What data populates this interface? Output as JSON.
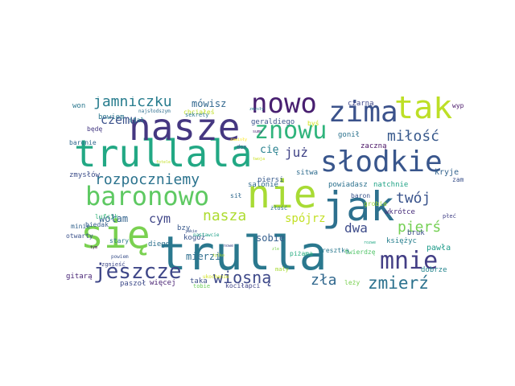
{
  "words": [
    {
      "text": "trulla",
      "color": "#2a788e"
    },
    {
      "text": "trullala",
      "color": "#22a884"
    },
    {
      "text": "nasze",
      "color": "#453781"
    },
    {
      "text": "nie",
      "color": "#a8db34"
    },
    {
      "text": "jak",
      "color": "#2d708e"
    },
    {
      "text": "się",
      "color": "#7ad151"
    },
    {
      "text": "słodkie",
      "color": "#39568c"
    },
    {
      "text": "nowo",
      "color": "#481f70"
    },
    {
      "text": "zima",
      "color": "#3b528b"
    },
    {
      "text": "tak",
      "color": "#bddf26"
    },
    {
      "text": "baronowo",
      "color": "#5ec962"
    },
    {
      "text": "znowu",
      "color": "#2fb47c"
    },
    {
      "text": "mnie",
      "color": "#433e85"
    },
    {
      "text": "jeszcze",
      "color": "#3f4788"
    },
    {
      "text": "wiosną",
      "color": "#3e4989"
    },
    {
      "text": "rozpoczniemy",
      "color": "#2c738e"
    },
    {
      "text": "jamniczku",
      "color": "#287d8e"
    },
    {
      "text": "zmierź",
      "color": "#2c728e"
    },
    {
      "text": "nasza",
      "color": "#addc30"
    },
    {
      "text": "pierś",
      "color": "#75d054"
    },
    {
      "text": "twój",
      "color": "#3a548c"
    },
    {
      "text": "miłość",
      "color": "#38598c"
    },
    {
      "text": "zła",
      "color": "#31688e"
    },
    {
      "text": "dwa",
      "color": "#3e4c8a"
    },
    {
      "text": "cym",
      "color": "#404688"
    },
    {
      "text": "już",
      "color": "#414487"
    },
    {
      "text": "czemu",
      "color": "#3b518b"
    },
    {
      "text": "spójrz",
      "color": "#c2df23"
    },
    {
      "text": "cię",
      "color": "#27808e"
    },
    {
      "text": "mówisz",
      "color": "#31678e"
    },
    {
      "text": "wołam",
      "color": "#33638d"
    },
    {
      "text": "sobie",
      "color": "#355f8d"
    },
    {
      "text": "mierzi",
      "color": "#2e6e8e"
    },
    {
      "text": "kryje",
      "color": "#33638d"
    },
    {
      "text": "pawła",
      "color": "#1e9b8a"
    },
    {
      "text": "czarna",
      "color": "#3f4889"
    },
    {
      "text": "gonił",
      "color": "#2c738e"
    },
    {
      "text": "zaczną",
      "color": "#471063"
    },
    {
      "text": "księżyc",
      "color": "#277f8e"
    },
    {
      "text": "bowiem",
      "color": "#2a768e"
    },
    {
      "text": "zmysłów",
      "color": "#3d4e8a"
    },
    {
      "text": "sitwa",
      "color": "#2f6c8e"
    },
    {
      "text": "salonie",
      "color": "#30698e"
    },
    {
      "text": "natchnie",
      "color": "#20a386"
    },
    {
      "text": "powiadasz",
      "color": "#2c718e"
    },
    {
      "text": "wkrótce",
      "color": "#472d7b"
    },
    {
      "text": "bruk",
      "color": "#3c4f8a"
    },
    {
      "text": "kogóż",
      "color": "#3a538b"
    },
    {
      "text": "diego",
      "color": "#2d718e"
    },
    {
      "text": "bzy",
      "color": "#38598c"
    },
    {
      "text": "gitarą",
      "color": "#482576"
    },
    {
      "text": "więcej",
      "color": "#482173"
    },
    {
      "text": "paszoł",
      "color": "#3e4a89"
    },
    {
      "text": "taka",
      "color": "#3c4f8a"
    },
    {
      "text": "kociłapci",
      "color": "#404588"
    },
    {
      "text": "leży",
      "color": "#7ad151"
    },
    {
      "text": "dobrze",
      "color": "#25858e"
    },
    {
      "text": "piersi",
      "color": "#375a8c"
    },
    {
      "text": "geraldiego",
      "color": "#3a548c"
    },
    {
      "text": "stał",
      "color": "#287c8e"
    },
    {
      "text": "won",
      "color": "#2a778e"
    },
    {
      "text": "będę",
      "color": "#443983"
    },
    {
      "text": "chciałeś",
      "color": "#c0df25"
    },
    {
      "text": "baronie",
      "color": "#31688e"
    },
    {
      "text": "minie",
      "color": "#33638d"
    },
    {
      "text": "stary",
      "color": "#2a778e"
    },
    {
      "text": "biedak",
      "color": "#365d8d"
    },
    {
      "text": "lufcik",
      "color": "#35b779"
    },
    {
      "text": "otwarty",
      "color": "#3b528b"
    },
    {
      "text": "zgnieść",
      "color": "#3e4989"
    },
    {
      "text": "sił",
      "color": "#30698e"
    },
    {
      "text": "żłość",
      "color": "#2c718e"
    },
    {
      "text": "resztką",
      "color": "#2a788e"
    },
    {
      "text": "twierdzę",
      "color": "#52c569"
    },
    {
      "text": "wypchnie",
      "color": "#481769"
    },
    {
      "text": "zamarzł",
      "color": "#3b518b"
    },
    {
      "text": "grobie",
      "color": "#a2da37"
    },
    {
      "text": "płeć",
      "color": "#424186"
    },
    {
      "text": "baron",
      "color": "#3a548c"
    },
    {
      "text": "piżama",
      "color": "#27ad81"
    },
    {
      "text": "mały",
      "color": "#a8db34"
    },
    {
      "text": "tobie",
      "color": "#6ccd5a"
    },
    {
      "text": "byś",
      "color": "#d2e21b"
    },
    {
      "text": "don",
      "color": "#3b528b"
    },
    {
      "text": "sekrety",
      "color": "#2a788e"
    },
    {
      "text": "zawisły",
      "color": "#fde725"
    },
    {
      "text": "powiem",
      "color": "#3b528b"
    },
    {
      "text": "nastawcie",
      "color": "#1fa088"
    },
    {
      "text": "ukochanie",
      "color": "#d0e11c"
    },
    {
      "text": "najsłodszym",
      "color": "#2e6e8e"
    },
    {
      "text": "twoja",
      "color": "#c8e020"
    },
    {
      "text": "zmysły",
      "color": "#2a788e"
    },
    {
      "text": "sumy",
      "color": "#481f70"
    },
    {
      "text": "jakie",
      "color": "#3b528b"
    },
    {
      "text": "rozwe",
      "color": "#22a884"
    },
    {
      "text": "nowe",
      "color": "#3e4a89"
    },
    {
      "text": "zle",
      "color": "#7ad151"
    },
    {
      "text": "tym",
      "color": "#440154"
    },
    {
      "text": "fotele",
      "color": "#c2df23"
    },
    {
      "text": "tylko",
      "color": "#b5de2b"
    }
  ]
}
